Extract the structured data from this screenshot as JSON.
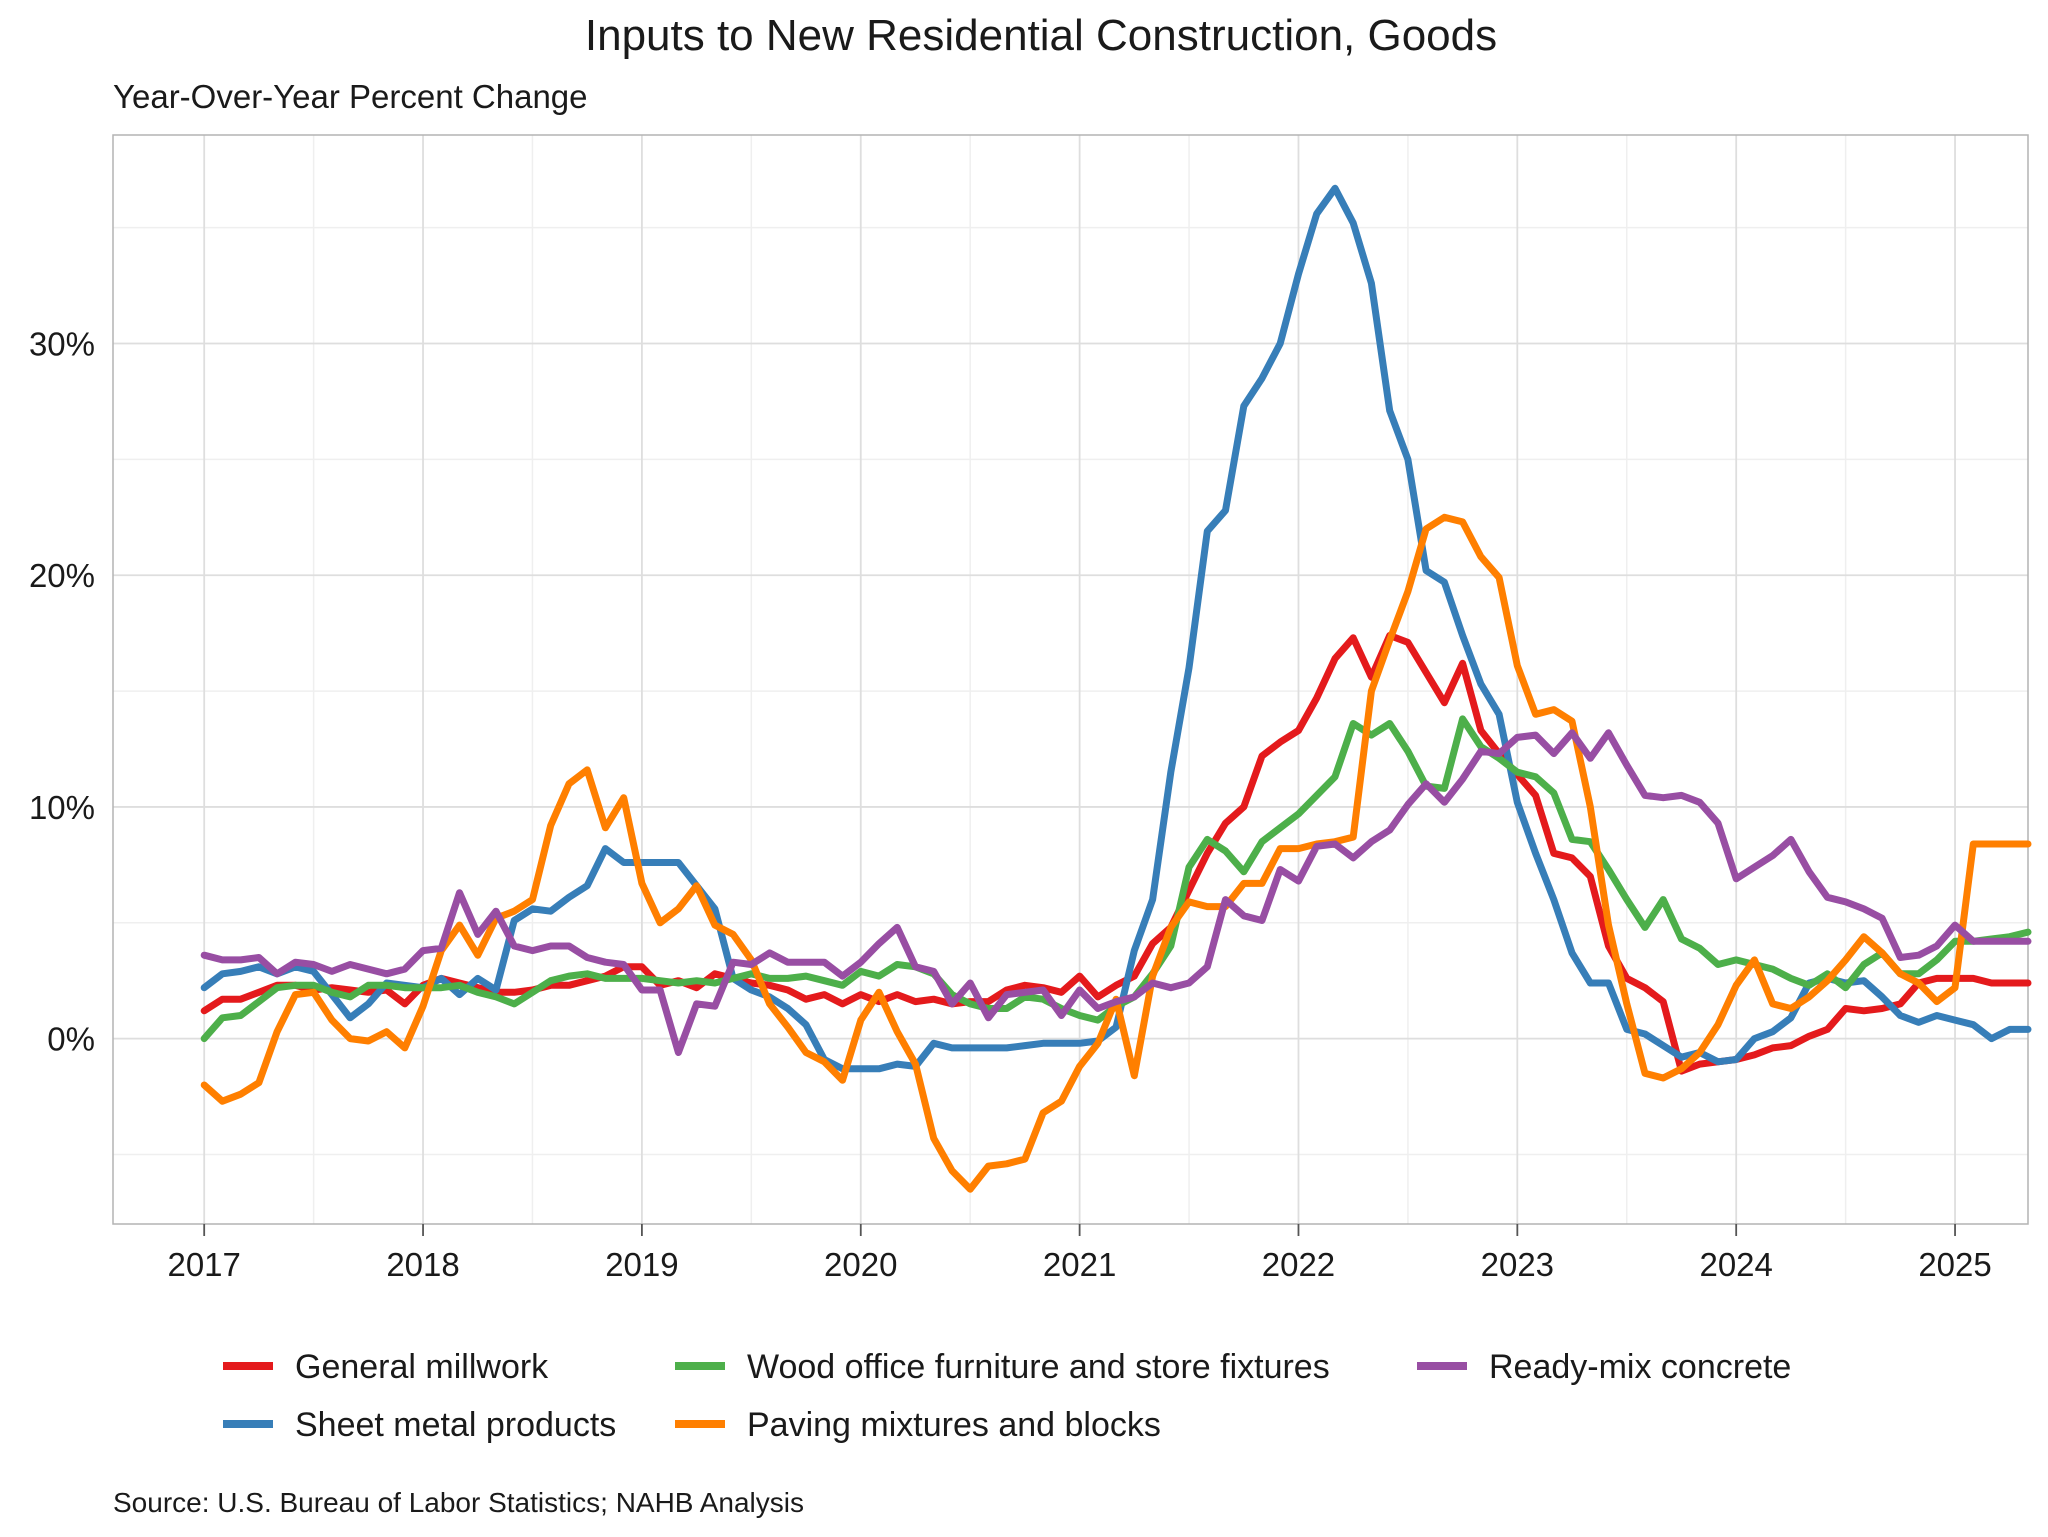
{
  "chart_data": {
    "type": "line",
    "title": "Inputs to New Residential Construction, Goods",
    "subtitle": "Year-Over-Year Percent Change",
    "caption": "Source: U.S. Bureau of Labor Statistics; NAHB Analysis",
    "x_start": "2017-01",
    "x_ticks": [
      "2017",
      "2018",
      "2019",
      "2020",
      "2021",
      "2022",
      "2023",
      "2024",
      "2025"
    ],
    "y_ticks": [
      0,
      10,
      20,
      30
    ],
    "y_tick_labels": [
      "0%",
      "10%",
      "20%",
      "30%"
    ],
    "xlim": [
      "2016-08",
      "2025-05"
    ],
    "ylim": [
      -8,
      39
    ],
    "grid": true,
    "legend_position": "bottom",
    "series": [
      {
        "name": "General millwork",
        "color": "#E41A1C",
        "values": [
          1.2,
          1.7,
          1.7,
          2.0,
          2.3,
          2.3,
          2.1,
          2.2,
          2.1,
          2.0,
          2.1,
          1.5,
          2.3,
          2.6,
          2.4,
          2.2,
          2.0,
          2.0,
          2.1,
          2.3,
          2.3,
          2.5,
          2.7,
          3.1,
          3.1,
          2.3,
          2.5,
          2.2,
          2.8,
          2.6,
          2.4,
          2.3,
          2.1,
          1.7,
          1.9,
          1.5,
          1.9,
          1.6,
          1.9,
          1.6,
          1.7,
          1.5,
          1.6,
          1.6,
          2.1,
          2.3,
          2.2,
          2.0,
          2.7,
          1.8,
          2.3,
          2.7,
          4.1,
          4.8,
          6.4,
          8.0,
          9.3,
          10.0,
          12.2,
          12.8,
          13.3,
          14.7,
          16.4,
          17.3,
          15.6,
          17.4,
          17.1,
          15.8,
          14.5,
          16.2,
          13.3,
          12.3,
          11.4,
          10.5,
          8.0,
          7.8,
          7.0,
          4.0,
          2.6,
          2.2,
          1.6,
          -1.4,
          -1.1,
          -1.0,
          -0.9,
          -0.7,
          -0.4,
          -0.3,
          0.1,
          0.4,
          1.3,
          1.2,
          1.3,
          1.5,
          2.4,
          2.6,
          2.6,
          2.6,
          2.4,
          2.4,
          2.4
        ],
        "label_hidden": true
      },
      {
        "name": "Sheet metal products",
        "color": "#377EB8",
        "values": [
          2.2,
          2.8,
          2.9,
          3.1,
          2.8,
          3.1,
          2.9,
          1.9,
          0.9,
          1.5,
          2.4,
          2.3,
          2.2,
          2.6,
          1.9,
          2.6,
          2.1,
          5.1,
          5.6,
          5.5,
          6.1,
          6.6,
          8.2,
          7.6,
          7.6,
          7.6,
          7.6,
          6.6,
          5.6,
          2.6,
          2.1,
          1.8,
          1.3,
          0.6,
          -0.9,
          -1.3,
          -1.3,
          -1.3,
          -1.1,
          -1.2,
          -0.2,
          -0.4,
          -0.4,
          -0.4,
          -0.4,
          -0.3,
          -0.2,
          -0.2,
          -0.2,
          -0.1,
          0.5,
          3.8,
          6.0,
          11.5,
          16.0,
          21.9,
          22.8,
          27.3,
          28.5,
          30.0,
          33.0,
          35.6,
          36.7,
          35.2,
          32.6,
          27.1,
          25.0,
          20.2,
          19.7,
          17.4,
          15.3,
          14.0,
          10.2,
          8.0,
          6.0,
          3.7,
          2.4,
          2.4,
          0.4,
          0.2,
          -0.3,
          -0.8,
          -0.6,
          -1.0,
          -0.9,
          0.0,
          0.3,
          0.9,
          2.4,
          2.6,
          2.4,
          2.5,
          1.8,
          1.0,
          0.7,
          1.0,
          0.8,
          0.6,
          0.0,
          0.4,
          0.4
        ],
        "label_hidden": true
      },
      {
        "name": "Wood office furniture and store fixtures",
        "color": "#4DAF4A",
        "values": [
          0.0,
          0.9,
          1.0,
          1.6,
          2.2,
          2.3,
          2.3,
          2.0,
          1.8,
          2.3,
          2.3,
          2.2,
          2.2,
          2.2,
          2.3,
          2.0,
          1.8,
          1.5,
          2.0,
          2.5,
          2.7,
          2.8,
          2.6,
          2.6,
          2.6,
          2.5,
          2.4,
          2.5,
          2.4,
          2.6,
          2.8,
          2.6,
          2.6,
          2.7,
          2.5,
          2.3,
          2.9,
          2.7,
          3.2,
          3.1,
          2.8,
          1.9,
          1.5,
          1.3,
          1.3,
          1.8,
          1.7,
          1.3,
          1.0,
          0.8,
          1.4,
          1.8,
          2.8,
          4.0,
          7.4,
          8.6,
          8.1,
          7.2,
          8.5,
          9.1,
          9.7,
          10.5,
          11.3,
          13.6,
          13.1,
          13.6,
          12.4,
          10.9,
          10.8,
          13.8,
          12.6,
          12.1,
          11.5,
          11.3,
          10.6,
          8.6,
          8.5,
          7.3,
          6.0,
          4.8,
          6.0,
          4.3,
          3.9,
          3.2,
          3.4,
          3.2,
          3.0,
          2.6,
          2.3,
          2.8,
          2.2,
          3.2,
          3.7,
          2.8,
          2.8,
          3.4,
          4.2,
          4.2,
          4.3,
          4.4,
          4.6
        ],
        "label_hidden": true
      },
      {
        "name": "Paving mixtures and blocks",
        "color": "#FF7F00",
        "values": [
          -2.0,
          -2.7,
          -2.4,
          -1.9,
          0.3,
          1.9,
          2.0,
          0.8,
          0.0,
          -0.1,
          0.3,
          -0.4,
          1.4,
          3.8,
          4.9,
          3.6,
          5.2,
          5.5,
          6.0,
          9.2,
          11.0,
          11.6,
          9.1,
          10.4,
          6.7,
          5.0,
          5.6,
          6.6,
          4.9,
          4.5,
          3.4,
          1.5,
          0.5,
          -0.6,
          -1.0,
          -1.8,
          0.8,
          2.0,
          0.3,
          -1.1,
          -4.3,
          -5.7,
          -6.5,
          -5.5,
          -5.4,
          -5.2,
          -3.2,
          -2.7,
          -1.2,
          -0.2,
          1.7,
          -1.6,
          2.7,
          4.8,
          5.9,
          5.7,
          5.7,
          6.7,
          6.7,
          8.2,
          8.2,
          8.4,
          8.5,
          8.7,
          15.0,
          17.2,
          19.3,
          22.0,
          22.5,
          22.3,
          20.8,
          19.9,
          16.1,
          14.0,
          14.2,
          13.7,
          10.0,
          4.9,
          1.5,
          -1.5,
          -1.7,
          -1.3,
          -0.6,
          0.6,
          2.3,
          3.4,
          1.5,
          1.3,
          1.8,
          2.5,
          3.4,
          4.4,
          3.7,
          2.8,
          2.4,
          1.6,
          2.2,
          8.4,
          8.4,
          8.4,
          8.4
        ],
        "label_hidden": true
      },
      {
        "name": "Ready-mix concrete",
        "color": "#984EA3",
        "values": [
          3.6,
          3.4,
          3.4,
          3.5,
          2.8,
          3.3,
          3.2,
          2.9,
          3.2,
          3.0,
          2.8,
          3.0,
          3.8,
          3.9,
          6.3,
          4.5,
          5.5,
          4.0,
          3.8,
          4.0,
          4.0,
          3.5,
          3.3,
          3.2,
          2.1,
          2.1,
          -0.6,
          1.5,
          1.4,
          3.3,
          3.2,
          3.7,
          3.3,
          3.3,
          3.3,
          2.7,
          3.3,
          4.1,
          4.8,
          3.1,
          2.9,
          1.5,
          2.4,
          0.9,
          1.9,
          2.0,
          2.1,
          1.0,
          2.1,
          1.3,
          1.6,
          1.8,
          2.4,
          2.2,
          2.4,
          3.1,
          6.0,
          5.3,
          5.1,
          7.3,
          6.8,
          8.3,
          8.4,
          7.8,
          8.5,
          9.0,
          10.1,
          11.0,
          10.2,
          11.2,
          12.4,
          12.3,
          13.0,
          13.1,
          12.3,
          13.2,
          12.1,
          13.2,
          11.8,
          10.5,
          10.4,
          10.5,
          10.2,
          9.3,
          6.9,
          7.4,
          7.9,
          8.6,
          7.2,
          6.1,
          5.9,
          5.6,
          5.2,
          3.5,
          3.6,
          4.0,
          4.9,
          4.2,
          4.2,
          4.2,
          4.2
        ],
        "label_hidden": true
      }
    ]
  }
}
